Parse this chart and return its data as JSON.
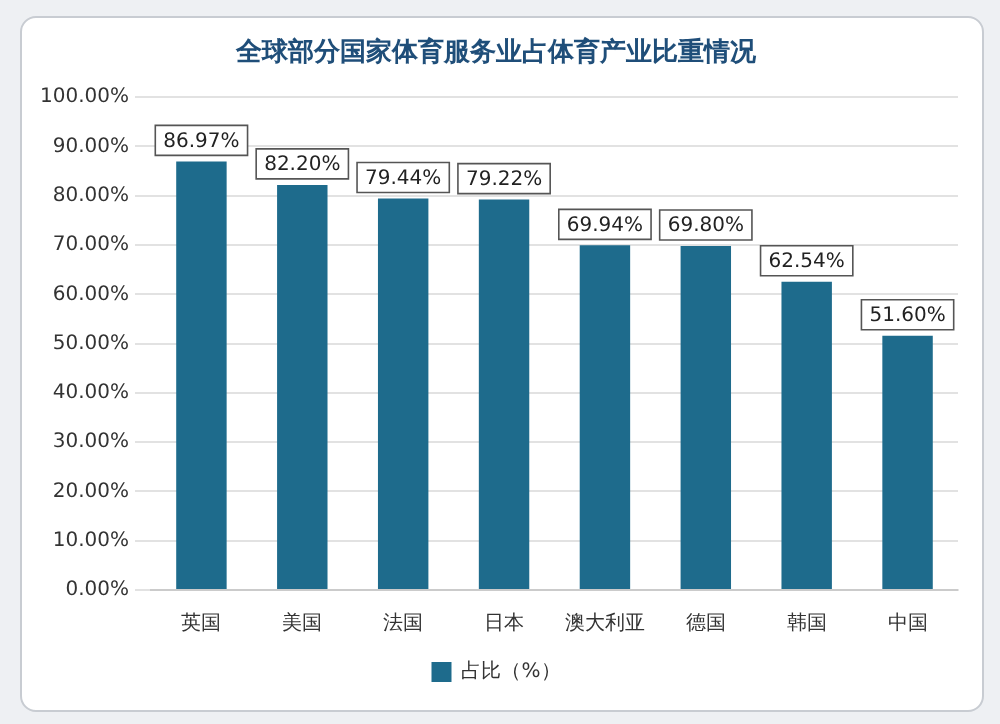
{
  "chart_data": {
    "type": "bar",
    "title": "全球部分国家体育服务业占体育产业比重情况",
    "categories": [
      "英国",
      "美国",
      "法国",
      "日本",
      "澳大利亚",
      "德国",
      "韩国",
      "中国"
    ],
    "series": [
      {
        "name": "占比（%）",
        "color": "#1e6b8c",
        "values": [
          86.97,
          82.2,
          79.44,
          79.22,
          69.94,
          69.8,
          62.54,
          51.6
        ],
        "value_labels": [
          "86.97%",
          "82.20%",
          "79.44%",
          "79.22%",
          "69.94%",
          "69.80%",
          "62.54%",
          "51.60%"
        ]
      }
    ],
    "ylim": [
      0,
      100
    ],
    "yticks": [
      {
        "value": 0,
        "label": "0.00%"
      },
      {
        "value": 10,
        "label": "10.00%"
      },
      {
        "value": 20,
        "label": "20.00%"
      },
      {
        "value": 30,
        "label": "30.00%"
      },
      {
        "value": 40,
        "label": "40.00%"
      },
      {
        "value": 50,
        "label": "50.00%"
      },
      {
        "value": 60,
        "label": "60.00%"
      },
      {
        "value": 70,
        "label": "70.00%"
      },
      {
        "value": 80,
        "label": "80.00%"
      },
      {
        "value": 90,
        "label": "90.00%"
      },
      {
        "value": 100,
        "label": "100.00%"
      }
    ],
    "grid": "y",
    "legend": "bottom"
  }
}
